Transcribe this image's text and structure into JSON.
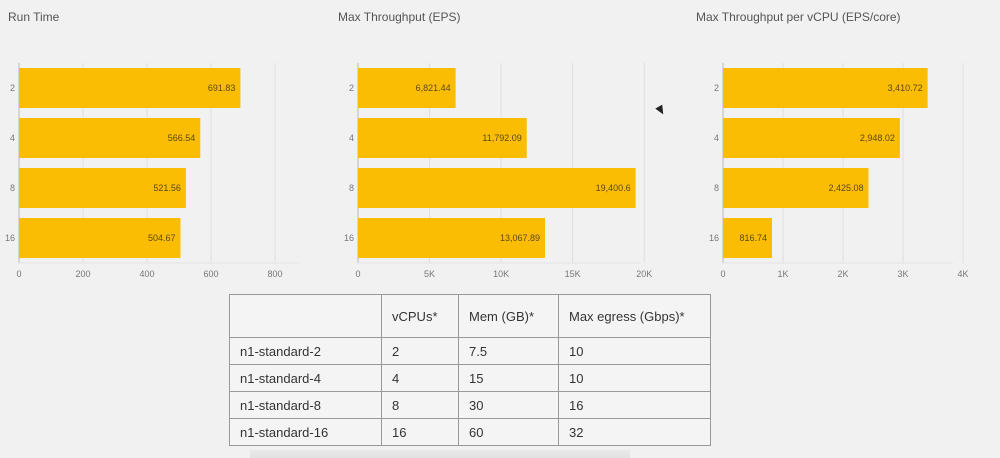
{
  "chart_data": [
    {
      "type": "bar",
      "orientation": "horizontal",
      "title": "Run Time",
      "categories": [
        "2",
        "4",
        "8",
        "16"
      ],
      "values": [
        691.83,
        566.54,
        521.56,
        504.67
      ],
      "value_labels": [
        "691.83",
        "566.54",
        "521.56",
        "504.67"
      ],
      "xlim": [
        0,
        1000
      ],
      "xticks": [
        0,
        200,
        400,
        600,
        800
      ],
      "xtick_labels": [
        "0",
        "200",
        "400",
        "600",
        "800"
      ],
      "grid": true,
      "bar_color": "#FBBC04"
    },
    {
      "type": "bar",
      "orientation": "horizontal",
      "title": "Max Throughput (EPS)",
      "categories": [
        "2",
        "4",
        "8",
        "16"
      ],
      "values": [
        6821.44,
        11792.09,
        19400.6,
        13067.89
      ],
      "value_labels": [
        "6,821.44",
        "11,792.09",
        "19,400.6",
        "13,067.89"
      ],
      "xlim": [
        0,
        22500
      ],
      "xticks": [
        0,
        5000,
        10000,
        15000,
        20000
      ],
      "xtick_labels": [
        "0",
        "5K",
        "10K",
        "15K",
        "20K"
      ],
      "grid": true,
      "bar_color": "#FBBC04"
    },
    {
      "type": "bar",
      "orientation": "horizontal",
      "title": "Max Throughput per vCPU (EPS/core)",
      "categories": [
        "2",
        "4",
        "8",
        "16"
      ],
      "values": [
        3410.72,
        2948.02,
        2425.08,
        816.74
      ],
      "value_labels": [
        "3,410.72",
        "2,948.02",
        "2,425.08",
        "816.74"
      ],
      "xlim": [
        0,
        4500
      ],
      "xticks": [
        0,
        1000,
        2000,
        3000,
        4000
      ],
      "xtick_labels": [
        "0",
        "1K",
        "2K",
        "3K",
        "4K"
      ],
      "grid": true,
      "bar_color": "#FBBC04"
    }
  ],
  "table": {
    "headers": [
      "",
      "vCPUs*",
      "Mem (GB)*",
      "Max egress (Gbps)*"
    ],
    "rows": [
      [
        "n1-standard-2",
        "2",
        "7.5",
        "10"
      ],
      [
        "n1-standard-4",
        "4",
        "15",
        "10"
      ],
      [
        "n1-standard-8",
        "8",
        "30",
        "16"
      ],
      [
        "n1-standard-16",
        "16",
        "60",
        "32"
      ]
    ]
  }
}
